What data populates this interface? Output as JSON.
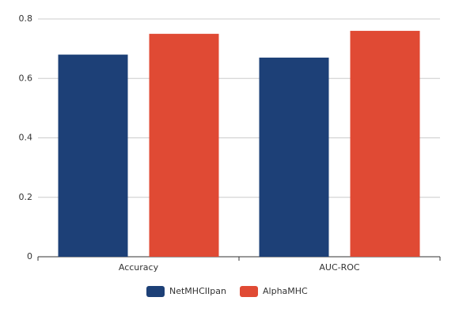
{
  "chart_data": {
    "type": "bar",
    "categories": [
      "Accuracy",
      "AUC-ROC"
    ],
    "series": [
      {
        "name": "NetMHCIIpan",
        "color": "#1d4077",
        "values": [
          0.68,
          0.67
        ]
      },
      {
        "name": "AlphaMHC",
        "color": "#e04a34",
        "values": [
          0.75,
          0.76
        ]
      }
    ],
    "ylim": [
      0,
      0.8
    ],
    "yticks": [
      0,
      0.2,
      0.4,
      0.6,
      0.8
    ],
    "grid": true,
    "legend": "bottom"
  }
}
